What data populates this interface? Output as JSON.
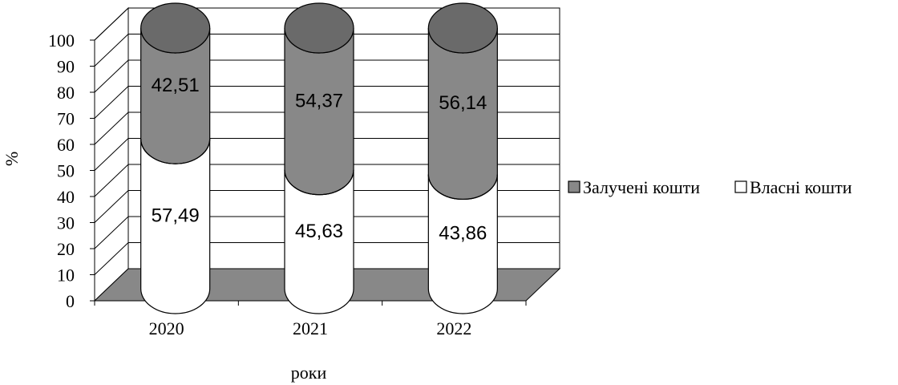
{
  "chart_data": {
    "type": "bar",
    "style": "stacked-cylinder-3d",
    "categories": [
      "2020",
      "2021",
      "2022"
    ],
    "series": [
      {
        "name": "Власні кошти",
        "values": [
          57.49,
          45.63,
          43.86
        ],
        "labels": [
          "57,49",
          "45,63",
          "43,86"
        ],
        "color": "#ffffff"
      },
      {
        "name": "Залучені кошти",
        "values": [
          42.51,
          54.37,
          56.14
        ],
        "labels": [
          "42,51",
          "54,37",
          "56,14"
        ],
        "color": "#888888"
      }
    ],
    "xlabel": "роки",
    "ylabel": "%",
    "ylim": [
      0,
      100
    ],
    "yticks": [
      "0",
      "10",
      "20",
      "30",
      "40",
      "50",
      "60",
      "70",
      "80",
      "90",
      "100"
    ],
    "grid": true,
    "legend_position": "right",
    "legend": [
      {
        "name": "Залучені кошти",
        "color": "#888888"
      },
      {
        "name": "Власні кошти",
        "color": "#ffffff"
      }
    ],
    "colors": {
      "floor": "#888888",
      "cap": "#6a6a6a"
    }
  }
}
